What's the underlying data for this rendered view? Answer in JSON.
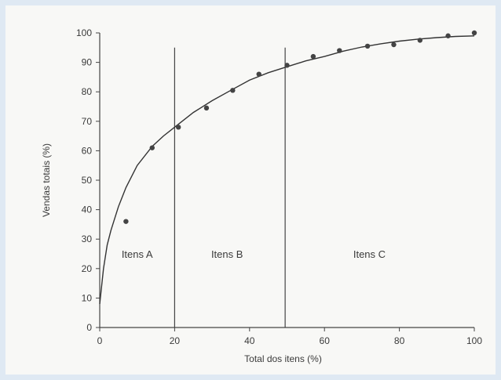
{
  "chart_data": {
    "type": "scatter",
    "xlabel": "Total dos itens (%)",
    "ylabel": "Vendas totais (%)",
    "xlim": [
      0,
      100
    ],
    "ylim": [
      0,
      100
    ],
    "x_ticks": [
      0,
      20,
      40,
      60,
      80,
      100
    ],
    "y_ticks": [
      0,
      10,
      20,
      30,
      40,
      50,
      60,
      70,
      80,
      90,
      100
    ],
    "grid": false,
    "points": [
      {
        "x": 7,
        "y": 36
      },
      {
        "x": 14,
        "y": 61
      },
      {
        "x": 21,
        "y": 68
      },
      {
        "x": 28.5,
        "y": 74.5
      },
      {
        "x": 35.5,
        "y": 80.5
      },
      {
        "x": 42.5,
        "y": 86
      },
      {
        "x": 50,
        "y": 89
      },
      {
        "x": 57,
        "y": 92
      },
      {
        "x": 64,
        "y": 94
      },
      {
        "x": 71.5,
        "y": 95.5
      },
      {
        "x": 78.5,
        "y": 96
      },
      {
        "x": 85.5,
        "y": 97.5
      },
      {
        "x": 93,
        "y": 99
      },
      {
        "x": 100,
        "y": 100
      }
    ],
    "fitted_curve": [
      [
        0,
        8
      ],
      [
        1,
        20
      ],
      [
        2,
        28
      ],
      [
        3,
        33
      ],
      [
        5,
        41
      ],
      [
        7,
        47.5
      ],
      [
        10,
        55
      ],
      [
        14,
        61.5
      ],
      [
        17,
        65
      ],
      [
        20,
        68
      ],
      [
        25,
        73
      ],
      [
        30,
        77
      ],
      [
        35,
        80.5
      ],
      [
        40,
        84
      ],
      [
        45,
        86.5
      ],
      [
        50,
        88.5
      ],
      [
        55,
        90.5
      ],
      [
        60,
        92
      ],
      [
        65,
        93.8
      ],
      [
        70,
        95.2
      ],
      [
        75,
        96.3
      ],
      [
        80,
        97.2
      ],
      [
        85,
        97.9
      ],
      [
        90,
        98.4
      ],
      [
        95,
        98.8
      ],
      [
        100,
        99
      ]
    ],
    "dividers": [
      20,
      49.5
    ],
    "regions": [
      {
        "label": "Itens A",
        "x": 10
      },
      {
        "label": "Itens B",
        "x": 34
      },
      {
        "label": "Itens C",
        "x": 72
      }
    ]
  }
}
